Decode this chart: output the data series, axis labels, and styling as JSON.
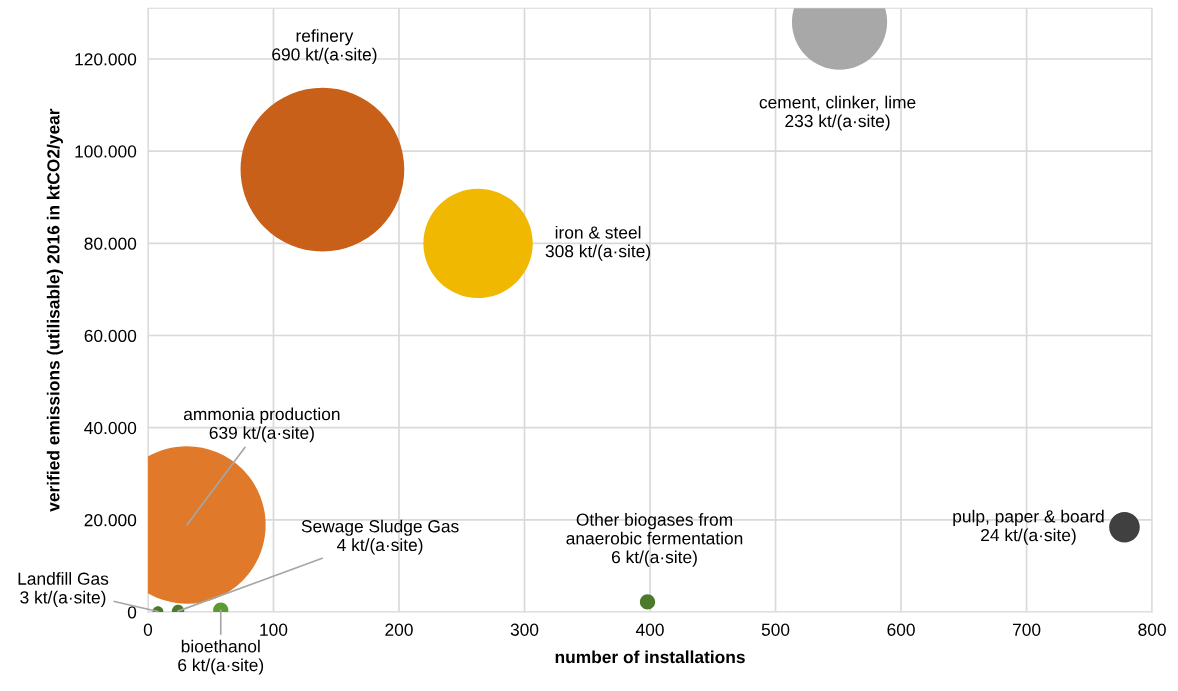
{
  "chart_data": {
    "type": "bubble",
    "xlabel": "number of installations",
    "ylabel": "verified emissions (utilisable) 2016 in ktCO2/year",
    "x": [
      139,
      263,
      551,
      31,
      778,
      398,
      24,
      8,
      58
    ],
    "values": [
      96000,
      80000,
      128000,
      18900,
      18400,
      2200,
      200,
      100,
      400
    ],
    "sizes": [
      1,
      0.446,
      0.338,
      0.926,
      0.035,
      0.0087,
      0.0058,
      0.0043,
      0.0087
    ],
    "colors": [
      "#c8601a",
      "#f0b800",
      "#a8a8a8",
      "#e07a2a",
      "#404040",
      "#4a7a2a",
      "#4a7a2a",
      "#4a7a2a",
      "#5c9a34"
    ],
    "value_labels": [
      "refinery\n690 kt/(a·site)",
      "iron & steel\n308 kt/(a·site)",
      "cement, clinker, lime\n233 kt/(a·site)",
      "ammonia production\n639 kt/(a·site)",
      "pulp, paper & board\n24 kt/(a·site)",
      "Other biogases from\nanaerobic fermentation\n6 kt/(a·site)",
      "Sewage Sludge Gas\n4 kt/(a·site)",
      "Landfill Gas\n3 kt/(a·site)",
      "bioethanol\n6 kt/(a·site)"
    ],
    "xlim": [
      0,
      800
    ],
    "xticks": [
      0,
      100,
      200,
      300,
      400,
      500,
      600,
      700,
      800
    ],
    "ylim": [
      0,
      131000
    ],
    "yticks": [
      {
        "value": 0,
        "label": "0"
      },
      {
        "value": 20000,
        "label": "20.000"
      },
      {
        "value": 40000,
        "label": "40.000"
      },
      {
        "value": 60000,
        "label": "60.000"
      },
      {
        "value": 80000,
        "label": "80.000"
      },
      {
        "value": 100000,
        "label": "100.000"
      },
      {
        "value": 120000,
        "label": "120.000"
      }
    ],
    "grid": true
  }
}
